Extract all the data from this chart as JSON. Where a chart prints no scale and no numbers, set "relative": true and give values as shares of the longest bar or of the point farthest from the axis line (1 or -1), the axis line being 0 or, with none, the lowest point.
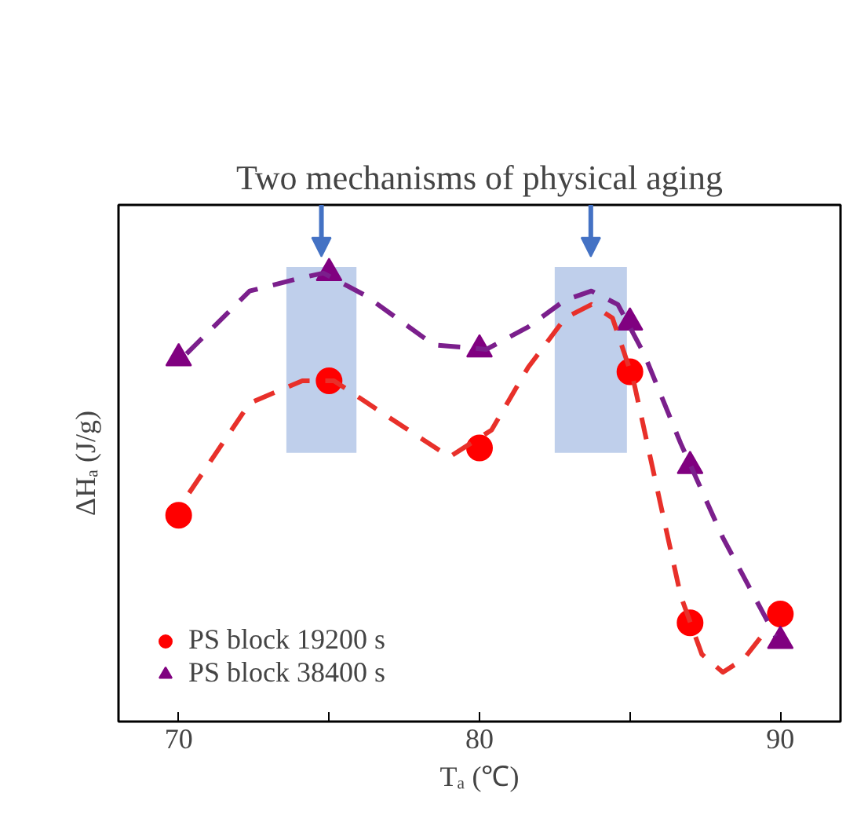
{
  "chart_data": {
    "type": "scatter",
    "title": "Two mechanisms of physical aging",
    "xlabel": "Tₐ (℃)",
    "ylabel": "ΔHₐ (J/g)",
    "relative": true,
    "xlim": [
      68,
      92
    ],
    "xticks": [
      70,
      {
        "value": 75,
        "label": null
      },
      80,
      {
        "value": 85,
        "label": null
      },
      90
    ],
    "legend": "bottom left",
    "grid": false,
    "series": [
      {
        "name": "PS block 19200 s",
        "color": "#ff0000",
        "marker": "circle",
        "x": [
          70,
          75,
          80,
          85,
          87,
          90
        ],
        "values": [
          0.46,
          0.76,
          0.61,
          0.78,
          0.22,
          0.24
        ]
      },
      {
        "name": "PS block 38400 s",
        "color": "#800080",
        "marker": "triangle",
        "x": [
          70,
          75,
          80,
          85,
          87,
          90
        ],
        "values": [
          0.81,
          1.0,
          0.83,
          0.89,
          0.57,
          0.18
        ]
      },
      {
        "type": "line",
        "color": "#e8302a",
        "line_style": "dashed",
        "x": [
          70.35,
          72.36,
          74.11,
          75.16,
          76.73,
          79.0,
          80.4,
          81.62,
          82.85,
          83.72,
          84.42,
          85.12,
          86.0,
          86.69,
          87.39,
          88.09,
          88.79,
          89.49
        ],
        "values": [
          0.51,
          0.71,
          0.76,
          0.76,
          0.69,
          0.59,
          0.65,
          0.79,
          0.9,
          0.93,
          0.9,
          0.76,
          0.49,
          0.28,
          0.15,
          0.11,
          0.14,
          0.2
        ]
      },
      {
        "type": "line",
        "color": "#7b1f8c",
        "line_style": "dashed",
        "x": [
          70.26,
          72.36,
          74.11,
          74.81,
          76.21,
          78.48,
          80.23,
          81.62,
          82.85,
          83.72,
          84.6,
          85.47,
          86.69,
          88.09,
          89.84
        ],
        "values": [
          0.82,
          0.96,
          0.99,
          1.0,
          0.95,
          0.84,
          0.83,
          0.88,
          0.94,
          0.96,
          0.93,
          0.82,
          0.62,
          0.41,
          0.19
        ]
      }
    ],
    "bands": [
      {
        "axis": "x",
        "from": 73.58,
        "to": 75.91,
        "color": "#b4c7e7"
      },
      {
        "axis": "x",
        "from": 82.5,
        "to": 84.9,
        "color": "#b4c7e7"
      }
    ]
  }
}
